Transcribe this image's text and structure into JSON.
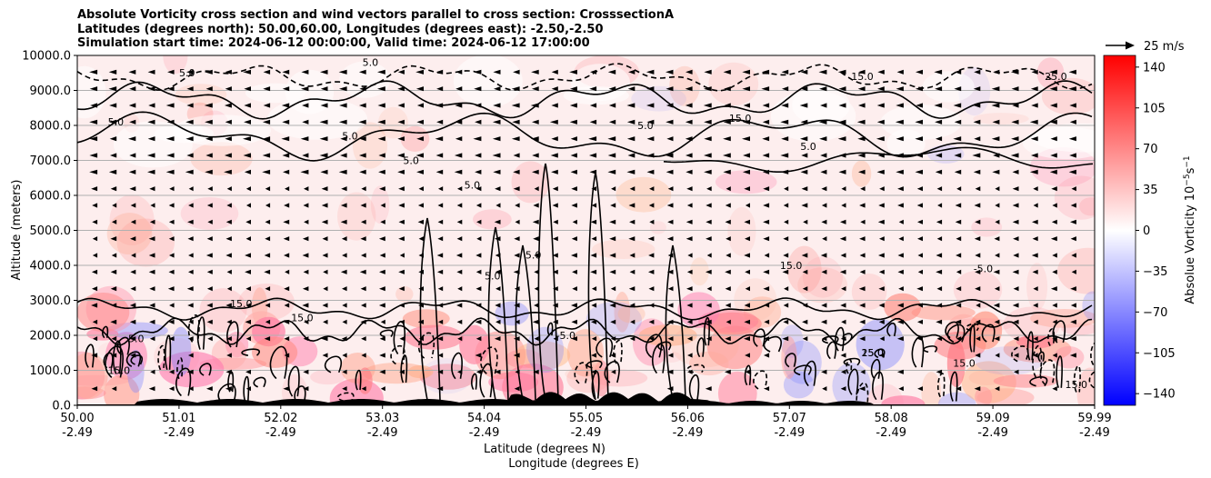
{
  "title_lines": [
    "Absolute Vorticity cross section and wind vectors parallel to cross section: CrosssectionA",
    "Latitudes (degrees north): 50.00,60.00, Longitudes (degrees east): -2.50,-2.50",
    "Simulation start time: 2024-06-12 00:00:00, Valid time: 2024-06-12 17:00:00"
  ],
  "chart_data": {
    "type": "heatmap",
    "ylabel": "Altitude (meters)",
    "xlabel_lines": [
      "Latitude (degrees N)",
      "Longitude (degrees E)"
    ],
    "ylim": [
      0,
      10000
    ],
    "y_ticks": [
      "0.0",
      "1000.0",
      "2000.0",
      "3000.0",
      "4000.0",
      "5000.0",
      "6000.0",
      "7000.0",
      "8000.0",
      "9000.0",
      "10000.0"
    ],
    "x_ticks": [
      {
        "lat": "50.00",
        "lon": "-2.49"
      },
      {
        "lat": "51.01",
        "lon": "-2.49"
      },
      {
        "lat": "52.02",
        "lon": "-2.49"
      },
      {
        "lat": "53.03",
        "lon": "-2.49"
      },
      {
        "lat": "54.04",
        "lon": "-2.49"
      },
      {
        "lat": "55.05",
        "lon": "-2.49"
      },
      {
        "lat": "56.06",
        "lon": "-2.49"
      },
      {
        "lat": "57.07",
        "lon": "-2.49"
      },
      {
        "lat": "58.08",
        "lon": "-2.49"
      },
      {
        "lat": "59.09",
        "lon": "-2.49"
      },
      {
        "lat": "59.99",
        "lon": "-2.49"
      }
    ],
    "grid": "horizontal",
    "colorbar": {
      "label": "Absolue Vorticity 10$^{-5}$s$^{-1}$",
      "label_main": "Absolue Vorticity 10",
      "label_exp1": "−5",
      "label_mid": "s",
      "label_exp2": "−1",
      "range": [
        -150,
        150
      ],
      "ticks": [
        "140",
        "105",
        "70",
        "35",
        "0",
        "−35",
        "−70",
        "−105",
        "−140"
      ],
      "colors": [
        "#0000ff",
        "#ffffff",
        "#ff0000"
      ]
    },
    "quiver_key": {
      "label": "25 m/s",
      "speed": 25
    },
    "contour_labels": [
      "5.0",
      "15.0",
      "25.0",
      "-5.0"
    ],
    "annotations": [
      {
        "text": "5.0",
        "lat": 50.3,
        "alt": 8000
      },
      {
        "text": "15.0",
        "lat": 51.5,
        "alt": 2800
      },
      {
        "text": "15.0",
        "lat": 50.3,
        "alt": 900
      },
      {
        "text": "5.0",
        "lat": 50.5,
        "alt": 1800
      },
      {
        "text": "15.0",
        "lat": 52.1,
        "alt": 2400
      },
      {
        "text": "-5.0",
        "lat": 54.7,
        "alt": 1900
      },
      {
        "text": "15.0",
        "lat": 57.7,
        "alt": 1400
      },
      {
        "text": "25.0",
        "lat": 57.7,
        "alt": 1400
      },
      {
        "text": "15.0",
        "lat": 58.6,
        "alt": 1100
      },
      {
        "text": "15.0",
        "lat": 59.7,
        "alt": 500
      },
      {
        "text": "5.0",
        "lat": 53.2,
        "alt": 6900
      },
      {
        "text": "5.0",
        "lat": 53.8,
        "alt": 6200
      },
      {
        "text": "5.0",
        "lat": 54.4,
        "alt": 4200
      },
      {
        "text": "5.0",
        "lat": 54.0,
        "alt": 3600
      },
      {
        "text": "15.0",
        "lat": 56.9,
        "alt": 3900
      },
      {
        "text": "5.0",
        "lat": 57.1,
        "alt": 7300
      },
      {
        "text": "15.0",
        "lat": 56.4,
        "alt": 8100
      },
      {
        "text": "5.0",
        "lat": 55.5,
        "alt": 7900
      },
      {
        "text": "-5.0",
        "lat": 58.8,
        "alt": 3800
      },
      {
        "text": "5.0",
        "lat": 52.6,
        "alt": 7600
      },
      {
        "text": "5.0",
        "lat": 51.0,
        "alt": 9400
      },
      {
        "text": "5.0",
        "lat": 52.8,
        "alt": 9700
      },
      {
        "text": "25.0",
        "lat": 59.5,
        "alt": 9300
      },
      {
        "text": "15.0",
        "lat": 57.6,
        "alt": 9300
      }
    ]
  }
}
